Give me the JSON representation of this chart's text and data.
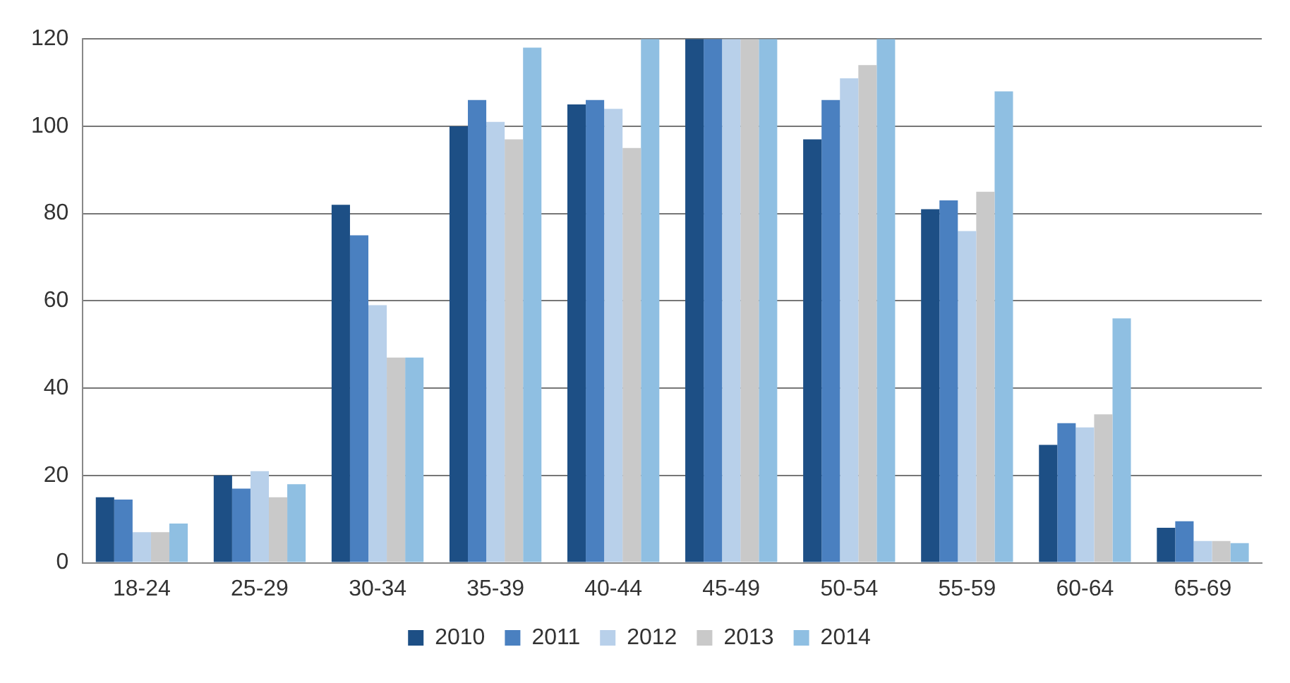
{
  "chart_data": {
    "type": "bar",
    "categories": [
      "18-24",
      "25-29",
      "30-34",
      "35-39",
      "40-44",
      "45-49",
      "50-54",
      "55-59",
      "60-64",
      "65-69"
    ],
    "series": [
      {
        "name": "2010",
        "color": "#1d4f85",
        "values": [
          15,
          20,
          82,
          100,
          105,
          120,
          97,
          81,
          27,
          8
        ]
      },
      {
        "name": "2011",
        "color": "#4a80c0",
        "values": [
          14.5,
          17,
          75,
          106,
          106,
          120,
          106,
          83,
          32,
          9.5
        ]
      },
      {
        "name": "2012",
        "color": "#b8d0ea",
        "values": [
          7,
          21,
          59,
          101,
          104,
          120,
          111,
          76,
          31,
          5
        ]
      },
      {
        "name": "2013",
        "color": "#c9c9c9",
        "values": [
          7,
          15,
          47,
          97,
          95,
          120,
          114,
          85,
          34,
          5
        ]
      },
      {
        "name": "2014",
        "color": "#8fbfe2",
        "values": [
          9,
          18,
          47,
          118,
          120,
          120,
          120,
          108,
          56,
          4.5
        ]
      }
    ],
    "ylim": [
      0,
      120
    ],
    "yticks": [
      0,
      20,
      40,
      60,
      80,
      100,
      120
    ],
    "grid": "y",
    "legend": "bottom"
  }
}
